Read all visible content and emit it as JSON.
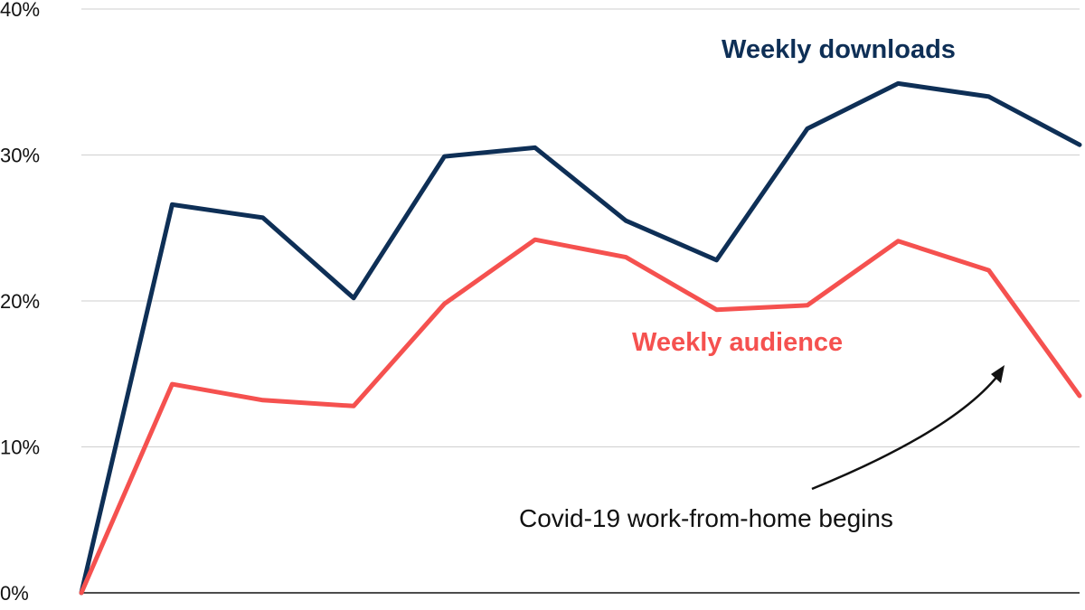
{
  "chart_data": {
    "type": "line",
    "x": [
      0,
      1,
      2,
      3,
      4,
      5,
      6,
      7,
      8,
      9,
      10,
      11
    ],
    "ylim": [
      0,
      40
    ],
    "yticks": [
      0,
      10,
      20,
      30,
      40
    ],
    "ytick_labels": [
      "0%",
      "10%",
      "20%",
      "30%",
      "40%"
    ],
    "grid": true,
    "series": [
      {
        "name": "Weekly downloads",
        "color": "#0e2f56",
        "values": [
          0,
          26.6,
          25.7,
          20.2,
          29.9,
          30.5,
          25.5,
          22.8,
          31.8,
          34.9,
          34.0,
          30.7
        ]
      },
      {
        "name": "Weekly audience",
        "color": "#f5514f",
        "values": [
          0,
          14.3,
          13.2,
          12.8,
          19.8,
          24.2,
          23.0,
          19.4,
          19.7,
          24.1,
          22.1,
          13.5
        ]
      }
    ],
    "annotation": {
      "text": "Covid-19 work-from-home begins",
      "target_x": 10
    }
  }
}
